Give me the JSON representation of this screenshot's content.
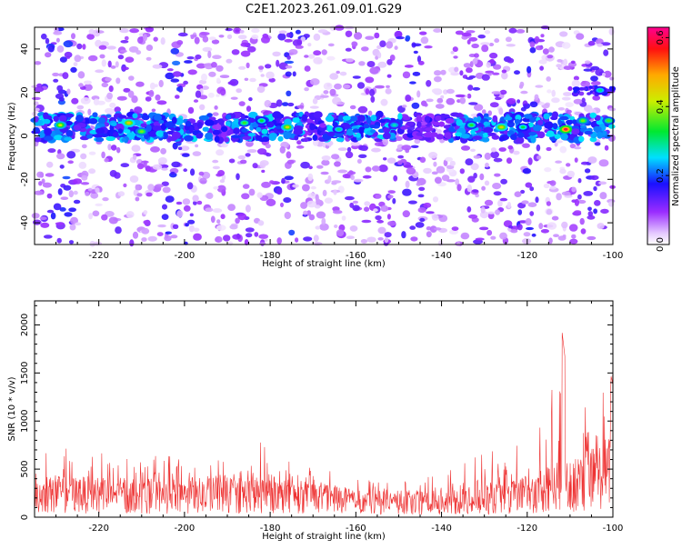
{
  "title": "C2E1.2023.261.09.01.G29",
  "chart_data": [
    {
      "type": "heatmap",
      "xlabel": "Height of straight line (km)",
      "ylabel": "Frequency (Hz)",
      "xlim": [
        -235,
        -100
      ],
      "ylim": [
        -50,
        50
      ],
      "x_ticks": [
        -220,
        -200,
        -180,
        -160,
        -140,
        -120,
        -100
      ],
      "y_ticks": [
        -40,
        -20,
        0,
        20,
        40
      ],
      "colorbar": {
        "label": "Normalized spectral amplitude",
        "range": [
          0,
          0.63
        ],
        "ticks": [
          0.0,
          0.2,
          0.4,
          0.6
        ],
        "colormap": "rainbow (white-violet-blue-cyan-green-yellow-red-magenta)"
      },
      "band": {
        "center_freq_hz": 4,
        "half_width_hz": 6,
        "description": "strong signal band near 0-8 Hz across full height range"
      },
      "secondary_feature": {
        "x_range": [
          -110,
          -100
        ],
        "freq_hz": 21,
        "amplitude": 0.3
      },
      "peak_cells": [
        {
          "x": -229,
          "y": 5,
          "v": 0.42
        },
        {
          "x": -213,
          "y": 6,
          "v": 0.46
        },
        {
          "x": -210,
          "y": 2,
          "v": 0.38
        },
        {
          "x": -186,
          "y": 6,
          "v": 0.35
        },
        {
          "x": -182,
          "y": 7,
          "v": 0.33
        },
        {
          "x": -176,
          "y": 4,
          "v": 0.44
        },
        {
          "x": -164,
          "y": 3,
          "v": 0.3
        },
        {
          "x": -151,
          "y": 5,
          "v": 0.28
        },
        {
          "x": -133,
          "y": 5,
          "v": 0.34
        },
        {
          "x": -126,
          "y": 4,
          "v": 0.45
        },
        {
          "x": -121,
          "y": 4,
          "v": 0.32
        },
        {
          "x": -111,
          "y": 3,
          "v": 0.6
        },
        {
          "x": -107,
          "y": 7,
          "v": 0.38
        },
        {
          "x": -101,
          "y": 7,
          "v": 0.36
        },
        {
          "x": -103,
          "y": 21,
          "v": 0.3
        }
      ],
      "background_level": 0.08
    },
    {
      "type": "line",
      "xlabel": "Height of straight line (km)",
      "ylabel": "SNR (10 * v/v)",
      "xlim": [
        -235,
        -100
      ],
      "ylim": [
        0,
        2250
      ],
      "x_ticks": [
        -220,
        -200,
        -180,
        -160,
        -140,
        -120,
        -100
      ],
      "y_ticks": [
        0,
        500,
        1000,
        1500,
        2000
      ],
      "color": "#ee3333",
      "envelope": {
        "x": [
          -235,
          -225,
          -215,
          -205,
          -195,
          -185,
          -178,
          -170,
          -160,
          -150,
          -140,
          -130,
          -122,
          -116,
          -112,
          -110,
          -108,
          -106,
          -104,
          -102,
          -100
        ],
        "baseline": [
          260,
          260,
          250,
          240,
          250,
          260,
          250,
          220,
          180,
          170,
          170,
          200,
          240,
          300,
          400,
          350,
          380,
          420,
          460,
          500,
          520
        ],
        "peak": [
          650,
          750,
          600,
          650,
          600,
          780,
          800,
          500,
          450,
          380,
          450,
          700,
          800,
          1000,
          1980,
          1200,
          1150,
          1300,
          1700,
          1500,
          2200
        ]
      }
    }
  ]
}
